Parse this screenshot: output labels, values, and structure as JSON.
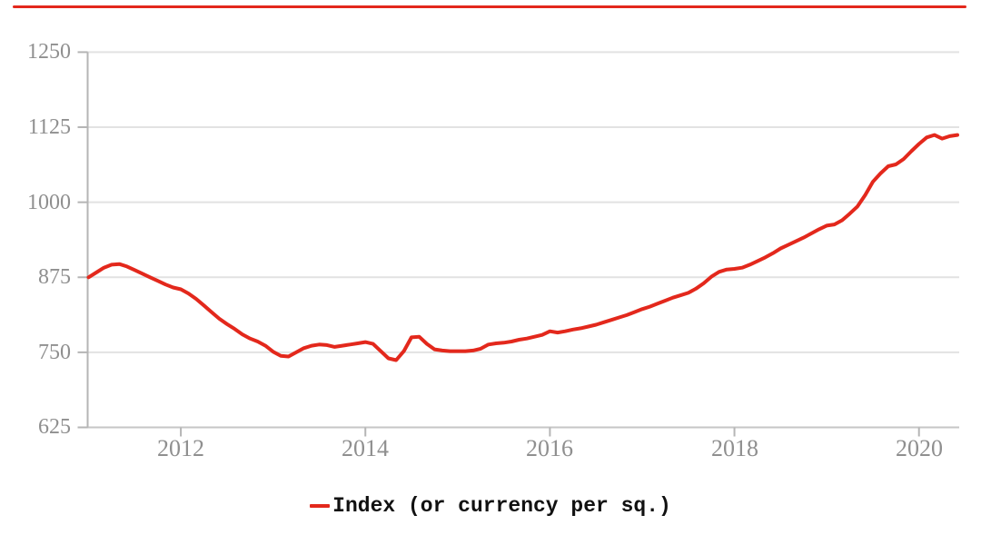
{
  "colors": {
    "accent_red": "#e3281c",
    "gridline": "#e2e2e2",
    "axis_line": "#c6c6c6",
    "tick": "#b5b5b5",
    "tick_label": "#8f8f8f",
    "legend_text": "#111111",
    "background": "#ffffff"
  },
  "top_bar": {
    "color": "#e3281c"
  },
  "chart_data": {
    "type": "line",
    "title": "",
    "xlabel": "",
    "ylabel": "",
    "grid": "horizontal",
    "legend_position": "bottom-center",
    "ylim": [
      625,
      1250
    ],
    "y_ticks": [
      1250,
      1125,
      1000,
      875,
      750,
      625
    ],
    "y_tick_labels": [
      "1250",
      "1125",
      "1000",
      "875",
      "750",
      "625"
    ],
    "x_tick_years": [
      2012,
      2014,
      2016,
      2018,
      2020
    ],
    "x_tick_labels": [
      "2012",
      "2014",
      "2016",
      "2018",
      "2020"
    ],
    "x_range": "Jan 2011 - Jun 2020 (monthly)",
    "series": [
      {
        "name": "Index (or currency per sq.)",
        "color": "#e3281c",
        "start_year": 2011,
        "start_month": 1,
        "frequency": "monthly",
        "values": [
          875,
          883,
          891,
          896,
          897,
          893,
          887,
          881,
          875,
          869,
          863,
          858,
          855,
          848,
          839,
          828,
          817,
          806,
          797,
          789,
          780,
          773,
          768,
          761,
          751,
          744,
          743,
          750,
          757,
          761,
          763,
          762,
          759,
          761,
          763,
          765,
          767,
          764,
          752,
          740,
          737,
          752,
          775,
          776,
          764,
          755,
          753,
          752,
          752,
          752,
          753,
          756,
          763,
          765,
          766,
          768,
          771,
          773,
          776,
          779,
          785,
          783,
          785,
          788,
          790,
          793,
          796,
          800,
          804,
          808,
          812,
          817,
          822,
          826,
          831,
          836,
          841,
          845,
          849,
          856,
          865,
          876,
          884,
          888,
          889,
          891,
          896,
          902,
          908,
          915,
          923,
          929,
          935,
          941,
          948,
          955,
          961,
          963,
          970,
          981,
          993,
          1012,
          1034,
          1048,
          1060,
          1063,
          1072,
          1085,
          1097,
          1108,
          1112,
          1106,
          1110,
          1112
        ]
      }
    ]
  },
  "legend": {
    "label": "Index (or currency per sq.)",
    "marker_color": "#e3281c"
  }
}
